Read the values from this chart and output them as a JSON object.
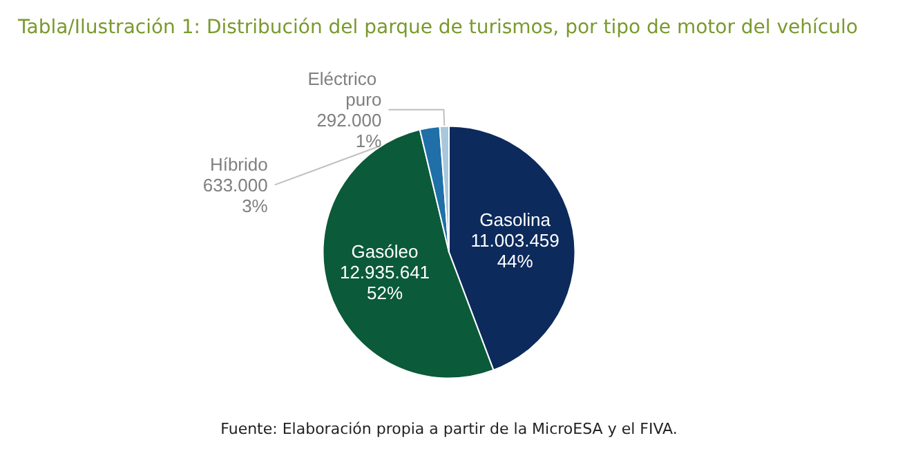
{
  "chart_data": {
    "type": "pie",
    "title": "Tabla/Ilustración 1: Distribución del parque de turismos, por tipo de motor del vehículo",
    "categories": [
      "Gasolina",
      "Gasóleo",
      "Híbrido",
      "Eléctrico puro"
    ],
    "values": [
      11003459,
      12935641,
      633000,
      292000
    ],
    "colors": [
      "#0d2a5c",
      "#0b5a3a",
      "#1f6fa8",
      "#a9c7dc"
    ],
    "value_labels": [
      "11.003.459\n44%",
      "12.935.641\n52%",
      "633.000\n3%",
      "292.000\n1%"
    ],
    "legend": false,
    "annotations": [
      "Fuente: Elaboración propia a partir de la MicroESA y el FIVA."
    ]
  }
}
